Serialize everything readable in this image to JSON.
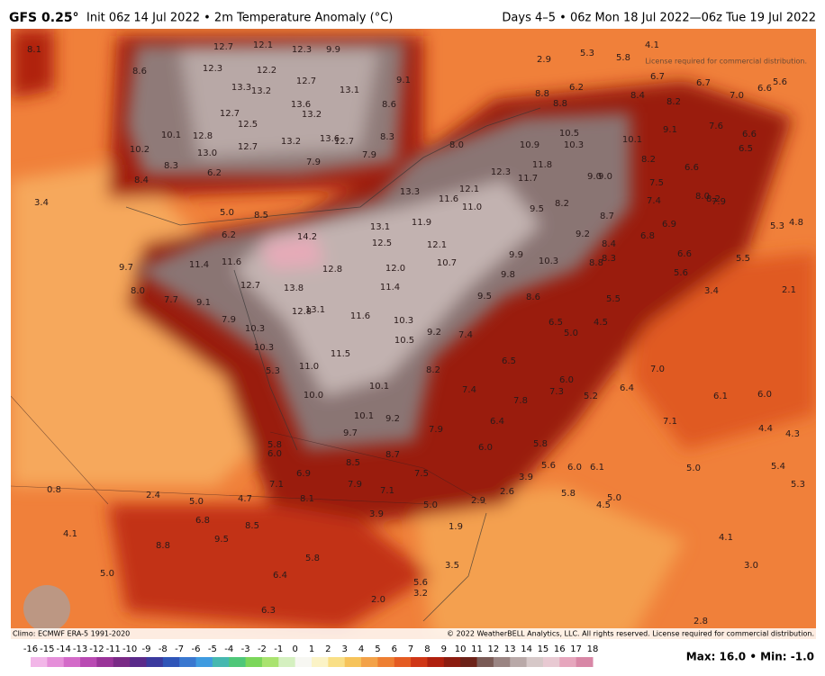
{
  "header": {
    "model": "GFS 0.25°",
    "title": "Init 06z 14 Jul 2022 • 2m Temperature Anomaly (°C)",
    "valid": "Days 4–5 • 06z Mon 18 Jul 2022—06z Tue 19 Jul 2022"
  },
  "map": {
    "labels": [
      "12.7",
      "12.1",
      "12.3",
      "9.9",
      "8.1",
      "8.6",
      "12.3",
      "12.2",
      "12.7",
      "13.3",
      "13.2",
      "13.1",
      "9.1",
      "12.7",
      "13.6",
      "13.2",
      "8.6",
      "10.1",
      "12.8",
      "12.5",
      "13.2",
      "13.6",
      "12.7",
      "8.3",
      "10.2",
      "13.0",
      "12.7",
      "7.9",
      "7.9",
      "8.3",
      "8.4",
      "6.2",
      "3.4",
      "5.0",
      "8.5",
      "6.2",
      "8.8",
      "8.8",
      "6.2",
      "8.4",
      "8.2",
      "6.7",
      "6.7",
      "7.0",
      "6.6",
      "5.6",
      "4.1",
      "5.8",
      "5.3",
      "2.9",
      "8.0",
      "10.9",
      "10.5",
      "10.3",
      "10.1",
      "9.1",
      "7.6",
      "6.6",
      "6.5",
      "11.8",
      "12.3",
      "11.7",
      "9.0",
      "9.0",
      "8.2",
      "7.5",
      "6.6",
      "13.3",
      "11.6",
      "12.1",
      "11.0",
      "9.5",
      "8.2",
      "8.7",
      "7.4",
      "8.0",
      "8.2",
      "7.9",
      "6.9",
      "5.3",
      "4.8",
      "14.2",
      "13.1",
      "11.9",
      "12.5",
      "12.1",
      "9.9",
      "9.2",
      "6.8",
      "8.4",
      "8.3",
      "8.8",
      "10.3",
      "9.7",
      "11.4",
      "11.6",
      "12.8",
      "12.0",
      "10.7",
      "9.8",
      "6.6",
      "5.6",
      "5.5",
      "8.0",
      "12.7",
      "13.8",
      "11.4",
      "9.5",
      "8.6",
      "5.5",
      "3.4",
      "2.1",
      "7.7",
      "9.1",
      "12.8",
      "13.1",
      "11.6",
      "10.3",
      "7.9",
      "10.3",
      "9.2",
      "7.4",
      "6.5",
      "4.5",
      "5.0",
      "10.5",
      "10.3",
      "11.5",
      "8.2",
      "6.5",
      "7.0",
      "5.3",
      "11.0",
      "10.1",
      "7.4",
      "6.0",
      "7.3",
      "5.2",
      "6.4",
      "6.0",
      "6.1",
      "10.0",
      "7.8",
      "10.1",
      "9.2",
      "6.4",
      "7.1",
      "9.7",
      "7.9",
      "4.4",
      "4.3",
      "6.0",
      "5.8",
      "5.8",
      "6.0",
      "8.7",
      "8.5",
      "7.5",
      "6.9",
      "5.6",
      "6.0",
      "6.1",
      "3.9",
      "5.0",
      "5.4",
      "7.1",
      "7.9",
      "7.1",
      "5.8",
      "5.0",
      "5.3",
      "8.1",
      "5.0",
      "4.7",
      "2.4",
      "0.8",
      "5.0",
      "2.9",
      "2.6",
      "4.5",
      "3.9",
      "6.8",
      "8.5",
      "4.1",
      "8.8",
      "9.5",
      "1.9",
      "4.1",
      "5.8",
      "5.0",
      "6.4",
      "3.5",
      "3.0",
      "5.6",
      "3.2",
      "2.0",
      "6.3",
      "2.8"
    ],
    "climo": "Climo: ECMWF ERA-5 1991-2020",
    "copyright": "© 2022 WeatherBELL Analytics, LLC. All rights reserved. License required for commercial distribution.",
    "license": "License required for commercial distribution."
  },
  "colorbar": {
    "ticks": [
      "-16",
      "-15",
      "-14",
      "-13",
      "-12",
      "-11",
      "-10",
      "-9",
      "-8",
      "-7",
      "-6",
      "-5",
      "-4",
      "-3",
      "-2",
      "-1",
      "0",
      "1",
      "2",
      "3",
      "4",
      "5",
      "6",
      "7",
      "8",
      "9",
      "10",
      "11",
      "12",
      "13",
      "14",
      "15",
      "16",
      "17",
      "18"
    ],
    "colors": [
      "#f2b6e8",
      "#e58fd9",
      "#d36ac8",
      "#b94ab3",
      "#9a3499",
      "#7a2a86",
      "#5a2a8a",
      "#3b3a9e",
      "#2f55b8",
      "#3a78d0",
      "#3f9be0",
      "#46b8b0",
      "#4fc779",
      "#7bd65a",
      "#a9e36f",
      "#d5f0c0",
      "#f7f7f2",
      "#fbf3c6",
      "#f9df86",
      "#f6c35a",
      "#f3a248",
      "#ee7f32",
      "#e45b22",
      "#cf3616",
      "#b0200e",
      "#8c1c10",
      "#6c2218",
      "#7a5a55",
      "#9a8482",
      "#b9a9a8",
      "#d6c8c8",
      "#e8c9d2",
      "#e6a6bd",
      "#d887a6"
    ],
    "stats": "Max: 16.0 • Min: -1.0"
  }
}
